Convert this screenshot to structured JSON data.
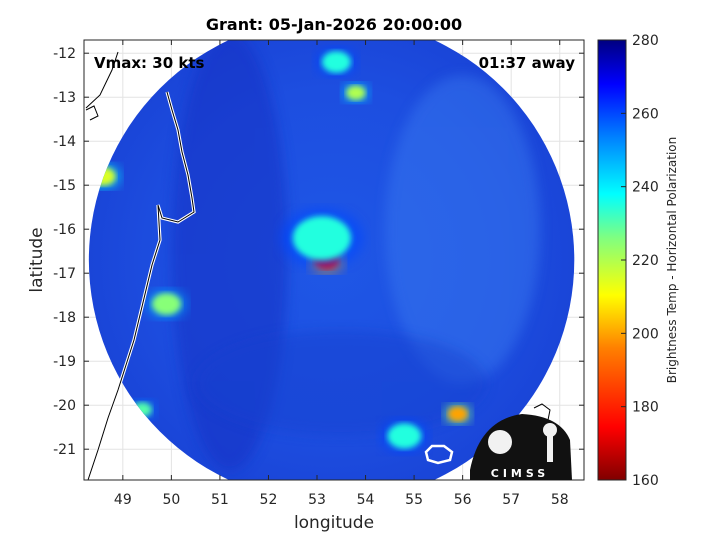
{
  "chart_data": {
    "type": "heatmap",
    "title": "Grant: 05-Jan-2026 20:00:00",
    "xlabel": "longitude",
    "ylabel": "latitude",
    "xlim": [
      48.2,
      58.5
    ],
    "ylim": [
      -21.7,
      -11.7
    ],
    "x_ticks": [
      49,
      50,
      51,
      52,
      53,
      54,
      55,
      56,
      57,
      58
    ],
    "y_ticks": [
      -12,
      -13,
      -14,
      -15,
      -16,
      -17,
      -18,
      -19,
      -20,
      -21
    ],
    "grid": true,
    "annotations": {
      "left": "Vmax: 30 kts",
      "right": "01:37 away"
    },
    "colorbar": {
      "label": "Brightness Temp - Horizontal Polarization",
      "min": 160,
      "max": 280,
      "ticks": [
        160,
        180,
        200,
        220,
        240,
        260,
        280
      ]
    },
    "swath": {
      "center_lon": 53.3,
      "center_lat": -16.7,
      "radius_deg": 5.0,
      "background_temp": 262
    },
    "features": [
      {
        "lon": 53.2,
        "lat": -16.7,
        "temp": 175,
        "size": 0.25
      },
      {
        "lon": 53.1,
        "lat": -16.2,
        "temp": 235,
        "size": 0.6
      },
      {
        "lon": 53.4,
        "lat": -12.2,
        "temp": 235,
        "size": 0.3
      },
      {
        "lon": 53.8,
        "lat": -12.9,
        "temp": 220,
        "size": 0.2
      },
      {
        "lon": 48.6,
        "lat": -14.8,
        "temp": 215,
        "size": 0.25
      },
      {
        "lon": 49.9,
        "lat": -17.7,
        "temp": 225,
        "size": 0.3
      },
      {
        "lon": 49.4,
        "lat": -20.1,
        "temp": 230,
        "size": 0.2
      },
      {
        "lon": 55.9,
        "lat": -20.2,
        "temp": 200,
        "size": 0.2
      },
      {
        "lon": 54.8,
        "lat": -20.7,
        "temp": 235,
        "size": 0.35
      }
    ]
  },
  "logo": {
    "text": "CIMSS"
  }
}
